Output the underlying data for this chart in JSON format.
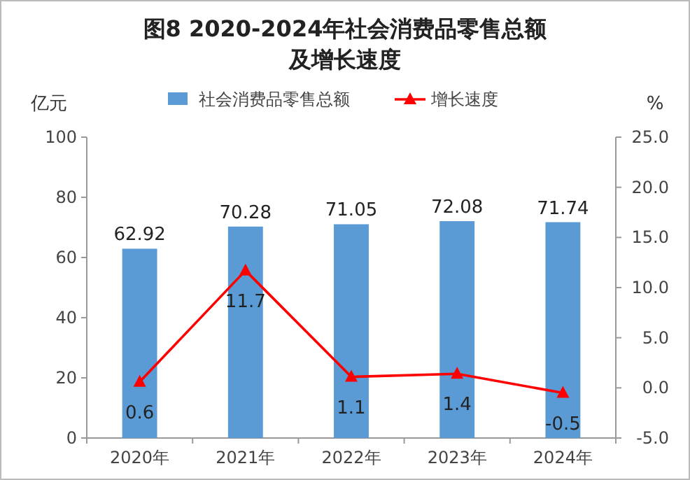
{
  "chart_data": {
    "type": "bar",
    "title": "图8 2020-2024年社会消费品零售总额及增长速度",
    "ylabel": "亿元",
    "y2label": "%",
    "categories": [
      "2020年",
      "2021年",
      "2022年",
      "2023年",
      "2024年"
    ],
    "series": [
      {
        "name": "社会消费品零售总额",
        "color": "#5b9bd5",
        "values": [
          62.92,
          70.28,
          71.05,
          72.08,
          71.74
        ]
      },
      {
        "name": "增长速度",
        "type": "line",
        "axis": "y2",
        "color": "#ff0000",
        "values": [
          0.6,
          11.7,
          1.1,
          1.4,
          -0.5
        ]
      }
    ],
    "ylim": [
      0,
      100
    ],
    "yticks": [
      0,
      20,
      40,
      60,
      80,
      100
    ],
    "y2lim": [
      -5,
      25
    ],
    "y2ticks": [
      {
        "value": -5,
        "label": "-5.0"
      },
      {
        "value": 0,
        "label": "0.0"
      },
      {
        "value": 5,
        "label": "5.0"
      },
      {
        "value": 10,
        "label": "10.0"
      },
      {
        "value": 15,
        "label": "15.0"
      },
      {
        "value": 20,
        "label": "20.0"
      },
      {
        "value": 25,
        "label": "25.0"
      }
    ],
    "marker": "triangle",
    "legend": "top",
    "data_labels": true,
    "grid": false
  }
}
